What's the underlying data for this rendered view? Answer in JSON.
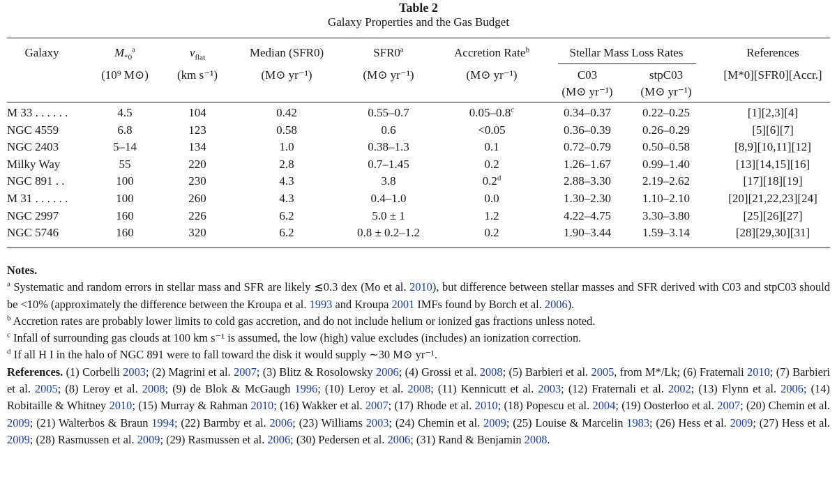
{
  "caption": {
    "title": "Table 2",
    "subtitle": "Galaxy Properties and the Gas Budget"
  },
  "header": {
    "galaxy": "Galaxy",
    "mass_sym": "M",
    "mass_sub": "*0",
    "mass_note": "a",
    "vflat_sym": "v",
    "vflat_sub": "flat",
    "median": "Median (SFR0)",
    "sfr0": "SFR0",
    "sfr0_note": "a",
    "accretion": "Accretion Rate",
    "accretion_note": "b",
    "mass_loss": "Stellar Mass Loss Rates",
    "references": "References"
  },
  "units": {
    "mass": "(10⁹ M⊙)",
    "vflat": "(km s⁻¹)",
    "median": "(M⊙ yr⁻¹)",
    "sfr0": "(M⊙ yr⁻¹)",
    "accretion": "(M⊙ yr⁻¹)",
    "c03": "C03",
    "stpc03": "stpC03",
    "c03_unit": "(M⊙ yr⁻¹)",
    "stpc03_unit": "(M⊙ yr⁻¹)",
    "references": "[M*0][SFR0][Accr.]"
  },
  "rows": [
    {
      "galaxy": "M 33 . . . . . .",
      "mass": "4.5",
      "vflat": "104",
      "median": "0.42",
      "sfr0": "0.55–0.7",
      "accretion": "0.05–0.8",
      "accretion_note": "c",
      "c03": "0.34–0.37",
      "stpc03": "0.22–0.25",
      "refs": "[1][2,3][4]"
    },
    {
      "galaxy": "NGC 4559",
      "mass": "6.8",
      "vflat": "123",
      "median": "0.58",
      "sfr0": "0.6",
      "accretion": "<0.05",
      "accretion_note": "",
      "c03": "0.36–0.39",
      "stpc03": "0.26–0.29",
      "refs": "[5][6][7]"
    },
    {
      "galaxy": "NGC 2403",
      "mass": "5–14",
      "vflat": "134",
      "median": "1.0",
      "sfr0": "0.38–1.3",
      "accretion": "0.1",
      "accretion_note": "",
      "c03": "0.72–0.79",
      "stpc03": "0.50–0.58",
      "refs": "[8,9][10,11][12]"
    },
    {
      "galaxy": "Milky Way",
      "mass": "55",
      "vflat": "220",
      "median": "2.8",
      "sfr0": "0.7–1.45",
      "accretion": "0.2",
      "accretion_note": "",
      "c03": "1.26–1.67",
      "stpc03": "0.99–1.40",
      "refs": "[13][14,15][16]"
    },
    {
      "galaxy": "NGC 891 . .",
      "mass": "100",
      "vflat": "230",
      "median": "4.3",
      "sfr0": "3.8",
      "accretion": "0.2",
      "accretion_note": "d",
      "c03": "2.88–3.30",
      "stpc03": "2.19–2.62",
      "refs": "[17][18][19]"
    },
    {
      "galaxy": "M 31 . . . . . .",
      "mass": "100",
      "vflat": "260",
      "median": "4.3",
      "sfr0": "0.4–1.0",
      "accretion": "0.0",
      "accretion_note": "",
      "c03": "1.30–2.30",
      "stpc03": "1.10–2.10",
      "refs": "[20][21,22,23][24]"
    },
    {
      "galaxy": "NGC 2997",
      "mass": "160",
      "vflat": "226",
      "median": "6.2",
      "sfr0": "5.0 ± 1",
      "accretion": "1.2",
      "accretion_note": "",
      "c03": "4.22–4.75",
      "stpc03": "3.30–3.80",
      "refs": "[25][26][27]"
    },
    {
      "galaxy": "NGC 5746",
      "mass": "160",
      "vflat": "320",
      "median": "6.2",
      "sfr0": "0.8 ± 0.2–1.2",
      "accretion": "0.2",
      "accretion_note": "",
      "c03": "1.90–3.44",
      "stpc03": "1.59–3.14",
      "refs": "[28][29,30][31]"
    }
  ],
  "notes": {
    "heading": "Notes.",
    "a": {
      "mark": "a",
      "text1": "Systematic and random errors in stellar mass and SFR are likely ≲0.3 dex (Mo et al. ",
      "cite1": "2010",
      "text2": "), but difference between stellar masses and SFR derived with C03 and stpC03 should be <10% (approximately the difference between the Kroupa et al. ",
      "cite2": "1993",
      "text3": " and Kroupa ",
      "cite3": "2001",
      "text4": " IMFs found by Borch et al. ",
      "cite4": "2006",
      "text5": ")."
    },
    "b": {
      "mark": "b",
      "text": "Accretion rates are probably lower limits to cold gas accretion, and do not include helium or ionized gas fractions unless noted."
    },
    "c": {
      "mark": "c",
      "text": "Infall of surrounding gas clouds at 100 km s⁻¹ is assumed, the low (high) value excludes (includes) an ionization correction."
    },
    "d": {
      "mark": "d",
      "text": "If all H I in the halo of NGC 891 were to fall toward the disk it would supply ∼30 M⊙ yr⁻¹."
    }
  },
  "references": {
    "label": "References.",
    "items": [
      {
        "n": "(1)",
        "author": "Corbelli",
        "year": "2003"
      },
      {
        "n": "(2)",
        "author": "Magrini et al.",
        "year": "2007"
      },
      {
        "n": "(3)",
        "author": "Blitz & Rosolowsky",
        "year": "2006"
      },
      {
        "n": "(4)",
        "author": "Grossi et al.",
        "year": "2008"
      },
      {
        "n": "(5)",
        "author": "Barbieri et al.",
        "year": "2005",
        "suffix": ", from M*/Lk"
      },
      {
        "n": "(6)",
        "author": "Fraternali",
        "year": "2010"
      },
      {
        "n": "(7)",
        "author": "Barbieri et al.",
        "year": "2005"
      },
      {
        "n": "(8)",
        "author": "Leroy et al.",
        "year": "2008"
      },
      {
        "n": "(9)",
        "author": "de Blok & McGaugh",
        "year": "1996"
      },
      {
        "n": "(10)",
        "author": "Leroy et al.",
        "year": "2008"
      },
      {
        "n": "(11)",
        "author": "Kennicutt et al.",
        "year": "2003"
      },
      {
        "n": "(12)",
        "author": "Fraternali et al.",
        "year": "2002"
      },
      {
        "n": "(13)",
        "author": "Flynn et al.",
        "year": "2006"
      },
      {
        "n": "(14)",
        "author": "Robitaille & Whitney",
        "year": "2010"
      },
      {
        "n": "(15)",
        "author": "Murray & Rahman",
        "year": "2010"
      },
      {
        "n": "(16)",
        "author": "Wakker et al.",
        "year": "2007"
      },
      {
        "n": "(17)",
        "author": "Rhode et al.",
        "year": "2010"
      },
      {
        "n": "(18)",
        "author": "Popescu et al.",
        "year": "2004"
      },
      {
        "n": "(19)",
        "author": "Oosterloo et al.",
        "year": "2007"
      },
      {
        "n": "(20)",
        "author": "Chemin et al.",
        "year": "2009"
      },
      {
        "n": "(21)",
        "author": "Walterbos & Braun",
        "year": "1994"
      },
      {
        "n": "(22)",
        "author": "Barmby et al.",
        "year": "2006"
      },
      {
        "n": "(23)",
        "author": "Williams",
        "year": "2003"
      },
      {
        "n": "(24)",
        "author": "Chemin et al.",
        "year": "2009"
      },
      {
        "n": "(25)",
        "author": "Louise & Marcelin",
        "year": "1983"
      },
      {
        "n": "(26)",
        "author": "Hess et al.",
        "year": "2009"
      },
      {
        "n": "(27)",
        "author": "Hess et al.",
        "year": "2009"
      },
      {
        "n": "(28)",
        "author": "Rasmussen et al.",
        "year": "2009"
      },
      {
        "n": "(29)",
        "author": "Rasmussen et al.",
        "year": "2006"
      },
      {
        "n": "(30)",
        "author": "Pedersen et al.",
        "year": "2006"
      },
      {
        "n": "(31)",
        "author": "Rand & Benjamin",
        "year": "2008"
      }
    ]
  }
}
